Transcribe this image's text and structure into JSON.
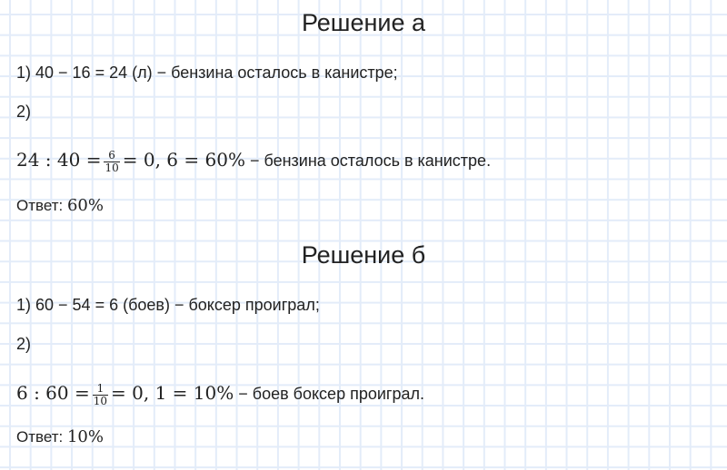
{
  "solution_a": {
    "title": "Решение а",
    "step1": "1) 40 − 16 = 24 (л) − бензина осталось в канистре;",
    "step2_label": "2)",
    "eq_left": "24 : 40 =",
    "frac_num": "6",
    "frac_den": "10",
    "eq_right": "= 0, 6 = 60%",
    "eq_text": " − бензина осталось в канистре.",
    "answer_label": "Ответ: ",
    "answer_value": "60%"
  },
  "solution_b": {
    "title": "Решение б",
    "step1": "1) 60 − 54 = 6 (боев) − боксер проиграл;",
    "step2_label": "2)",
    "eq_left": "6 : 60 =",
    "frac_num": "1",
    "frac_den": "10",
    "eq_right": "= 0, 1 = 10%",
    "eq_text": " − боев боксер проиграл.",
    "answer_label": "Ответ: ",
    "answer_value": "10%"
  }
}
